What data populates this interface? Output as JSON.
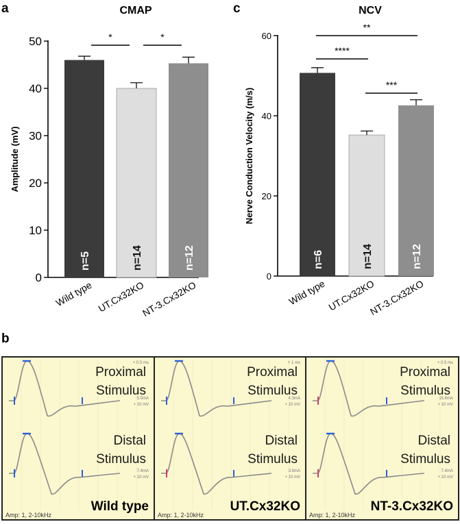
{
  "panel_a": {
    "letter": "a",
    "chart_data": {
      "type": "bar",
      "title": "CMAP",
      "xlabel": "",
      "ylabel": "Amplitude (mV)",
      "ylim": [
        0,
        50
      ],
      "yticks": [
        "0",
        "10",
        "20",
        "30",
        "40",
        "50"
      ],
      "categories": [
        "Wild type",
        "UT.Cx32KO",
        "NT-3.Cx32KO"
      ],
      "values": [
        46,
        40,
        45.3
      ],
      "errors": [
        0.8,
        1.2,
        1.3
      ],
      "n_labels": [
        "n=5",
        "n=14",
        "n=12"
      ],
      "colors": [
        "#3b3b3b",
        "#dedede",
        "#8e8e8e"
      ],
      "significance": [
        {
          "from": 0,
          "to": 1,
          "label": "*"
        },
        {
          "from": 1,
          "to": 2,
          "label": "*"
        }
      ]
    }
  },
  "panel_c": {
    "letter": "c",
    "chart_data": {
      "type": "bar",
      "title": "NCV",
      "xlabel": "",
      "ylabel": "Nerve Conduction Velocity (m/s)",
      "ylim": [
        0,
        60
      ],
      "yticks": [
        "0",
        "20",
        "40",
        "60"
      ],
      "categories": [
        "Wild type",
        "UT.Cx32KO",
        "NT-3.Cx32KO"
      ],
      "values": [
        50.7,
        35.2,
        42.6
      ],
      "errors": [
        1.3,
        1.0,
        1.4
      ],
      "n_labels": [
        "n=6",
        "n=14",
        "n=12"
      ],
      "colors": [
        "#3b3b3b",
        "#dedede",
        "#8e8e8e"
      ],
      "significance": [
        {
          "from": 0,
          "to": 2,
          "label": "**"
        },
        {
          "from": 0,
          "to": 1,
          "label": "****"
        },
        {
          "from": 1,
          "to": 2,
          "label": "***"
        }
      ]
    }
  },
  "panel_b": {
    "letter": "b",
    "panels": [
      {
        "group": "Wild type",
        "proximal_line1": "Proximal",
        "proximal_line2": "Stimulus",
        "distal_line1": "Distal",
        "distal_line2": "Stimulus",
        "top_scale": "0.5 ms",
        "prox_current": "5.0mA",
        "prox_gain": "10 mV",
        "dist_current": "7.4mA",
        "dist_gain": "10 mV",
        "amp_text": "Amp: 1, 2-10kHz"
      },
      {
        "group": "UT.Cx32KO",
        "proximal_line1": "Proximal",
        "proximal_line2": "Stimulus",
        "distal_line1": "Distal",
        "distal_line2": "Stimulus",
        "top_scale": "1 ms",
        "prox_current": "4.3mA",
        "prox_gain": "10 mV",
        "dist_current": "3.9mA",
        "dist_gain": "10 mV",
        "amp_text": "Amp: 1, 2-10kHz"
      },
      {
        "group": "NT-3.Cx32KO",
        "proximal_line1": "Proximal",
        "proximal_line2": "Stimulus",
        "distal_line1": "Distal",
        "distal_line2": "Stimulus",
        "top_scale": "0.5 ms",
        "prox_current": "15.6mA",
        "prox_gain": "10 mV",
        "dist_current": "7.4mA",
        "dist_gain": "10 mV",
        "amp_text": "Amp: 1, 2-10kHz"
      }
    ]
  }
}
